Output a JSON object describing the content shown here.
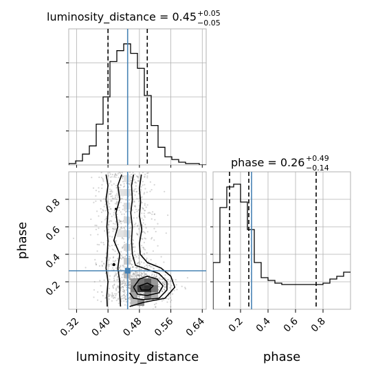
{
  "chart_data": [
    {
      "type": "histogram",
      "panel": "luminosity_distance marginal",
      "title": {
        "prefix": "luminosity_distance = 0.45",
        "sup": "+0.05",
        "sub": "−0.05"
      },
      "xlim": [
        0.3,
        0.65
      ],
      "bins": {
        "edges": [
          0.3,
          0.3175,
          0.335,
          0.3525,
          0.37,
          0.3875,
          0.405,
          0.4225,
          0.44,
          0.4575,
          0.475,
          0.4925,
          0.51,
          0.5275,
          0.545,
          0.5625,
          0.58,
          0.5975,
          0.615,
          0.6325,
          0.65
        ],
        "counts": [
          0.01,
          0.03,
          0.08,
          0.14,
          0.3,
          0.5,
          0.76,
          0.84,
          0.89,
          0.82,
          0.71,
          0.51,
          0.29,
          0.13,
          0.06,
          0.04,
          0.02,
          0.01,
          0.01,
          0.0
        ]
      },
      "quantile_lines": [
        0.4,
        0.5
      ],
      "truth_line": 0.45,
      "color": "#000000",
      "truth_color": "#4682b4"
    },
    {
      "type": "histogram",
      "panel": "phase marginal",
      "title": {
        "prefix": "phase = 0.26",
        "sup": "+0.49",
        "sub": "−0.14"
      },
      "xlim": [
        0.0,
        1.0
      ],
      "xticks": [
        "0.2",
        "0.4",
        "0.6",
        "0.8"
      ],
      "xlabel": "phase",
      "bins": {
        "edges": [
          0.0,
          0.05,
          0.1,
          0.15,
          0.2,
          0.25,
          0.3,
          0.35,
          0.4,
          0.45,
          0.5,
          0.55,
          0.6,
          0.65,
          0.7,
          0.75,
          0.8,
          0.85,
          0.9,
          0.95,
          1.0
        ],
        "counts": [
          0.34,
          0.74,
          0.89,
          0.91,
          0.78,
          0.58,
          0.34,
          0.23,
          0.21,
          0.19,
          0.18,
          0.18,
          0.18,
          0.18,
          0.18,
          0.18,
          0.19,
          0.22,
          0.24,
          0.27
        ]
      },
      "quantile_lines": [
        0.12,
        0.75
      ],
      "truth_line": 0.28,
      "color": "#000000",
      "truth_color": "#4682b4"
    },
    {
      "type": "scatter_density_contour",
      "panel": "joint",
      "xlabel": "luminosity_distance",
      "ylabel": "phase",
      "xlim": [
        0.3,
        0.65
      ],
      "ylim": [
        0.0,
        1.0
      ],
      "xticks": [
        "0.32",
        "0.40",
        "0.48",
        "0.56",
        "0.64"
      ],
      "yticks": [
        "0.2",
        "0.4",
        "0.6",
        "0.8"
      ],
      "truth": {
        "x": 0.45,
        "y": 0.28
      },
      "density_cells": [
        {
          "x": 0.475,
          "y": 0.05,
          "v": 0.5
        },
        {
          "x": 0.475,
          "y": 0.15,
          "v": 0.85
        },
        {
          "x": 0.475,
          "y": 0.2,
          "v": 0.6
        },
        {
          "x": 0.4925,
          "y": 0.15,
          "v": 0.9
        },
        {
          "x": 0.4925,
          "y": 0.2,
          "v": 0.7
        },
        {
          "x": 0.4925,
          "y": 0.1,
          "v": 0.55
        },
        {
          "x": 0.51,
          "y": 0.15,
          "v": 0.6
        },
        {
          "x": 0.51,
          "y": 0.2,
          "v": 0.45
        },
        {
          "x": 0.4575,
          "y": 0.15,
          "v": 0.55
        },
        {
          "x": 0.4575,
          "y": 0.1,
          "v": 0.4
        },
        {
          "x": 0.4575,
          "y": 0.2,
          "v": 0.45
        },
        {
          "x": 0.44,
          "y": 0.25,
          "v": 0.3
        },
        {
          "x": 0.44,
          "y": 0.35,
          "v": 0.22
        },
        {
          "x": 0.44,
          "y": 0.45,
          "v": 0.18
        },
        {
          "x": 0.44,
          "y": 0.55,
          "v": 0.16
        },
        {
          "x": 0.44,
          "y": 0.65,
          "v": 0.16
        },
        {
          "x": 0.44,
          "y": 0.75,
          "v": 0.15
        },
        {
          "x": 0.44,
          "y": 0.85,
          "v": 0.14
        },
        {
          "x": 0.44,
          "y": 0.95,
          "v": 0.12
        },
        {
          "x": 0.4225,
          "y": 0.85,
          "v": 0.12
        },
        {
          "x": 0.4225,
          "y": 0.55,
          "v": 0.12
        },
        {
          "x": 0.51,
          "y": 0.1,
          "v": 0.35
        },
        {
          "x": 0.4575,
          "y": 0.05,
          "v": 0.3
        }
      ],
      "contours": [
        {
          "name": "outer-ridge-left",
          "points": [
            [
              0.395,
              0.98
            ],
            [
              0.4,
              0.9
            ],
            [
              0.395,
              0.8
            ],
            [
              0.4,
              0.7
            ],
            [
              0.397,
              0.6
            ],
            [
              0.4,
              0.5
            ],
            [
              0.398,
              0.4
            ],
            [
              0.395,
              0.3
            ],
            [
              0.4,
              0.2
            ],
            [
              0.397,
              0.1
            ],
            [
              0.398,
              0.02
            ]
          ]
        },
        {
          "name": "outer-ridge-right",
          "points": [
            [
              0.485,
              0.98
            ],
            [
              0.48,
              0.88
            ],
            [
              0.483,
              0.78
            ],
            [
              0.48,
              0.68
            ],
            [
              0.486,
              0.58
            ],
            [
              0.48,
              0.48
            ],
            [
              0.482,
              0.4
            ],
            [
              0.5,
              0.34
            ],
            [
              0.535,
              0.3
            ],
            [
              0.56,
              0.24
            ],
            [
              0.57,
              0.16
            ],
            [
              0.545,
              0.08
            ],
            [
              0.49,
              0.05
            ],
            [
              0.455,
              0.02
            ]
          ]
        },
        {
          "name": "inner-ridge-left",
          "points": [
            [
              0.435,
              0.98
            ],
            [
              0.425,
              0.9
            ],
            [
              0.43,
              0.8
            ],
            [
              0.42,
              0.7
            ],
            [
              0.425,
              0.6
            ],
            [
              0.415,
              0.5
            ],
            [
              0.43,
              0.4
            ],
            [
              0.425,
              0.3
            ],
            [
              0.43,
              0.2
            ],
            [
              0.43,
              0.1
            ],
            [
              0.432,
              0.02
            ]
          ]
        },
        {
          "name": "inner-ridge-right",
          "points": [
            [
              0.465,
              0.98
            ],
            [
              0.46,
              0.9
            ],
            [
              0.462,
              0.8
            ],
            [
              0.458,
              0.7
            ],
            [
              0.462,
              0.6
            ],
            [
              0.46,
              0.5
            ],
            [
              0.462,
              0.4
            ],
            [
              0.47,
              0.32
            ],
            [
              0.5,
              0.29
            ],
            [
              0.53,
              0.26
            ],
            [
              0.55,
              0.2
            ],
            [
              0.55,
              0.14
            ],
            [
              0.53,
              0.08
            ],
            [
              0.49,
              0.07
            ],
            [
              0.465,
              0.08
            ],
            [
              0.455,
              0.12
            ]
          ]
        },
        {
          "name": "core-loop",
          "points": [
            [
              0.465,
              0.16
            ],
            [
              0.48,
              0.22
            ],
            [
              0.5,
              0.24
            ],
            [
              0.525,
              0.22
            ],
            [
              0.54,
              0.17
            ],
            [
              0.53,
              0.12
            ],
            [
              0.5,
              0.1
            ],
            [
              0.475,
              0.11
            ],
            [
              0.465,
              0.16
            ]
          ]
        },
        {
          "name": "core-inner",
          "points": [
            [
              0.48,
              0.17
            ],
            [
              0.5,
              0.19
            ],
            [
              0.515,
              0.17
            ],
            [
              0.505,
              0.14
            ],
            [
              0.485,
              0.14
            ],
            [
              0.48,
              0.17
            ]
          ]
        }
      ],
      "scatter_note": "dense grey sample cloud"
    }
  ],
  "colors": {
    "truth": "#4682b4",
    "grid": "#b0b0b0",
    "hist": "#000000"
  }
}
